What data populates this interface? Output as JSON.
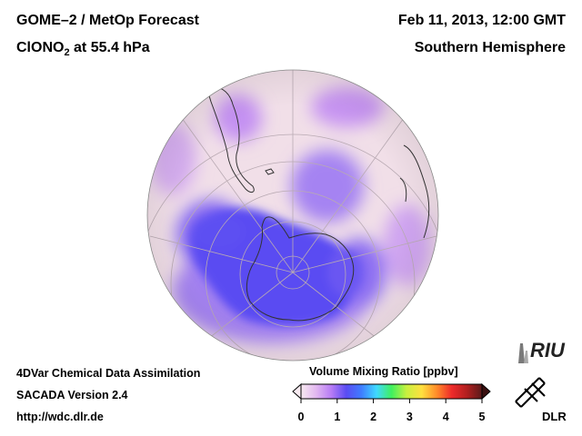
{
  "header": {
    "title_line1": "GOME–2 / MetOp Forecast",
    "title_species": "ClONO",
    "title_subscript": "2",
    "title_level": " at 55.4 hPa",
    "date": "Feb 11, 2013, 12:00 GMT",
    "region": "Southern Hemisphere"
  },
  "footer": {
    "line1": "4DVar Chemical Data Assimilation",
    "line2": "SACADA Version 2.4",
    "line3": "http://wdc.dlr.de"
  },
  "colorbar": {
    "title": "Volume Mixing Ratio [ppbv]",
    "ticks": [
      "0",
      "1",
      "2",
      "3",
      "4",
      "5"
    ],
    "min": 0,
    "max": 5,
    "colors": [
      "#f7eaf0",
      "#e2b8f0",
      "#b77cf5",
      "#5a4cf2",
      "#3f7cff",
      "#3fd9ff",
      "#3ff05e",
      "#c8f03f",
      "#ffe03f",
      "#ff8c2a",
      "#ee2a2a",
      "#b01f1f",
      "#5a1a1a"
    ]
  },
  "map": {
    "projection": "orthographic",
    "hemisphere": "south",
    "field_colors": {
      "background": "#f1dfe8",
      "low": "#5a4cf2",
      "mid": "#a583f2",
      "high": "#d6aef0",
      "land_outline": "#333333",
      "graticule": "#b9aab3"
    }
  },
  "logos": {
    "riu": "RIU",
    "dlr": "DLR"
  }
}
